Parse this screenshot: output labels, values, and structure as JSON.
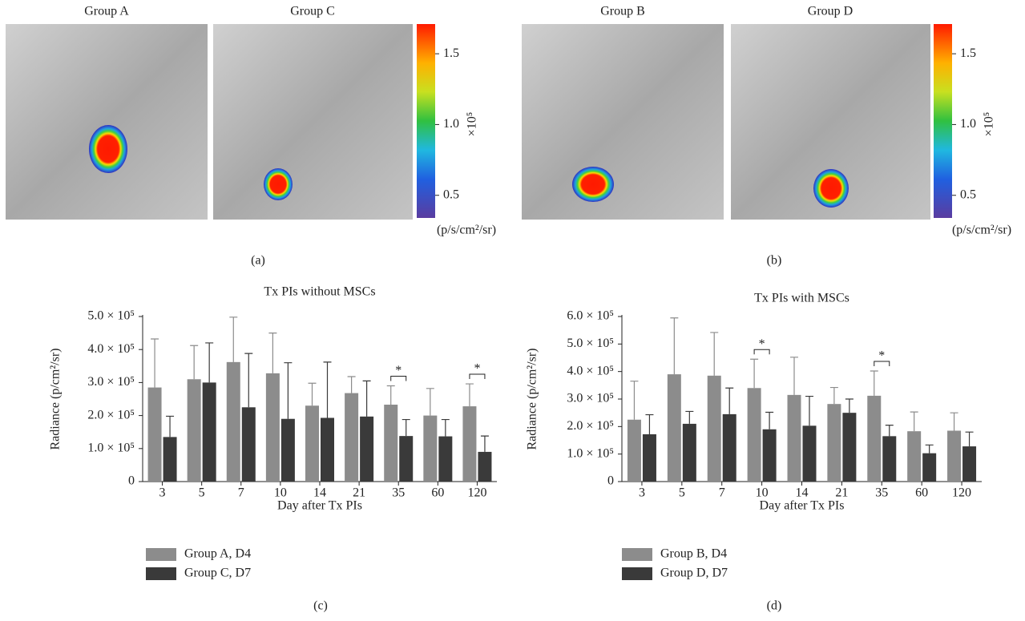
{
  "image_panels": [
    {
      "panel_label": "(a)",
      "images": [
        "Group A",
        "Group C"
      ],
      "colorbar": {
        "range": [
          0.34,
          1.71
        ],
        "ticks": [
          0.5,
          {
            "value": 1,
            "label": "1.0"
          },
          1.5
        ],
        "scale_label": "×10⁵",
        "unit": "(p/s/cm²/sr)"
      }
    },
    {
      "panel_label": "(b)",
      "images": [
        "Group B",
        "Group D"
      ],
      "colorbar": {
        "range": [
          0.34,
          1.71
        ],
        "ticks": [
          0.5,
          {
            "value": 1,
            "label": "1.0"
          },
          1.5
        ],
        "scale_label": "×10⁵",
        "unit": "(p/s/cm²/sr)"
      }
    }
  ],
  "chart_data": [
    {
      "type": "bar",
      "panel_label": "(c)",
      "title": "Tx PIs without MSCs",
      "x_label": "Day after Tx PIs",
      "y_label": "Radiance (p/cm²/sr)",
      "categories": [
        "3",
        "5",
        "7",
        "10",
        "14",
        "21",
        "35",
        "60",
        "120"
      ],
      "series": [
        {
          "name": "Group A, D4",
          "color": "#8c8c8c",
          "values": [
            285000,
            310000,
            362000,
            328000,
            230000,
            268000,
            233000,
            200000,
            228000
          ],
          "errors": [
            147000,
            102000,
            136000,
            122000,
            68000,
            50000,
            57000,
            82000,
            68000
          ]
        },
        {
          "name": "Group C, D7",
          "color": "#3a3a3a",
          "values": [
            135000,
            300000,
            225000,
            190000,
            193000,
            197000,
            138000,
            137000,
            90000
          ],
          "errors": [
            63000,
            120000,
            163000,
            170000,
            169000,
            108000,
            50000,
            51000,
            48000
          ]
        }
      ],
      "ylim": [
        0,
        500000
      ],
      "yticks": [
        0,
        {
          "value": 100000,
          "label": "1.0 × 10⁵"
        },
        {
          "value": 200000,
          "label": "2.0 × 10⁵"
        },
        {
          "value": 300000,
          "label": "3.0 × 10⁵"
        },
        {
          "value": 400000,
          "label": "4.0 × 10⁵"
        },
        {
          "value": 500000,
          "label": "5.0 × 10⁵"
        }
      ],
      "annotations": [
        "*",
        "*"
      ],
      "grid": false
    },
    {
      "type": "bar",
      "panel_label": "(d)",
      "title": "Tx PIs with MSCs",
      "x_label": "Day after Tx PIs",
      "y_label": "Radiance (p/cm²/sr)",
      "categories": [
        "3",
        "5",
        "7",
        "10",
        "14",
        "21",
        "35",
        "60",
        "120"
      ],
      "series": [
        {
          "name": "Group B, D4",
          "color": "#8c8c8c",
          "values": [
            225000,
            390000,
            385000,
            340000,
            315000,
            282000,
            312000,
            183000,
            185000
          ],
          "errors": [
            140000,
            205000,
            157000,
            105000,
            137000,
            60000,
            90000,
            70000,
            65000
          ]
        },
        {
          "name": "Group D, D7",
          "color": "#3a3a3a",
          "values": [
            172000,
            210000,
            245000,
            190000,
            203000,
            250000,
            165000,
            103000,
            128000
          ],
          "errors": [
            71000,
            45000,
            95000,
            62000,
            107000,
            50000,
            40000,
            30000,
            52000
          ]
        }
      ],
      "ylim": [
        0,
        600000
      ],
      "yticks": [
        0,
        {
          "value": 100000,
          "label": "1.0 × 10⁵"
        },
        {
          "value": 200000,
          "label": "2.0 × 10⁵"
        },
        {
          "value": 300000,
          "label": "3.0 × 10⁵"
        },
        {
          "value": 400000,
          "label": "4.0 × 10⁵"
        },
        {
          "value": 500000,
          "label": "5.0 × 10⁵"
        },
        {
          "value": 600000,
          "label": "6.0 × 10⁵"
        }
      ],
      "annotations": [
        "*",
        "*"
      ],
      "grid": false
    }
  ]
}
